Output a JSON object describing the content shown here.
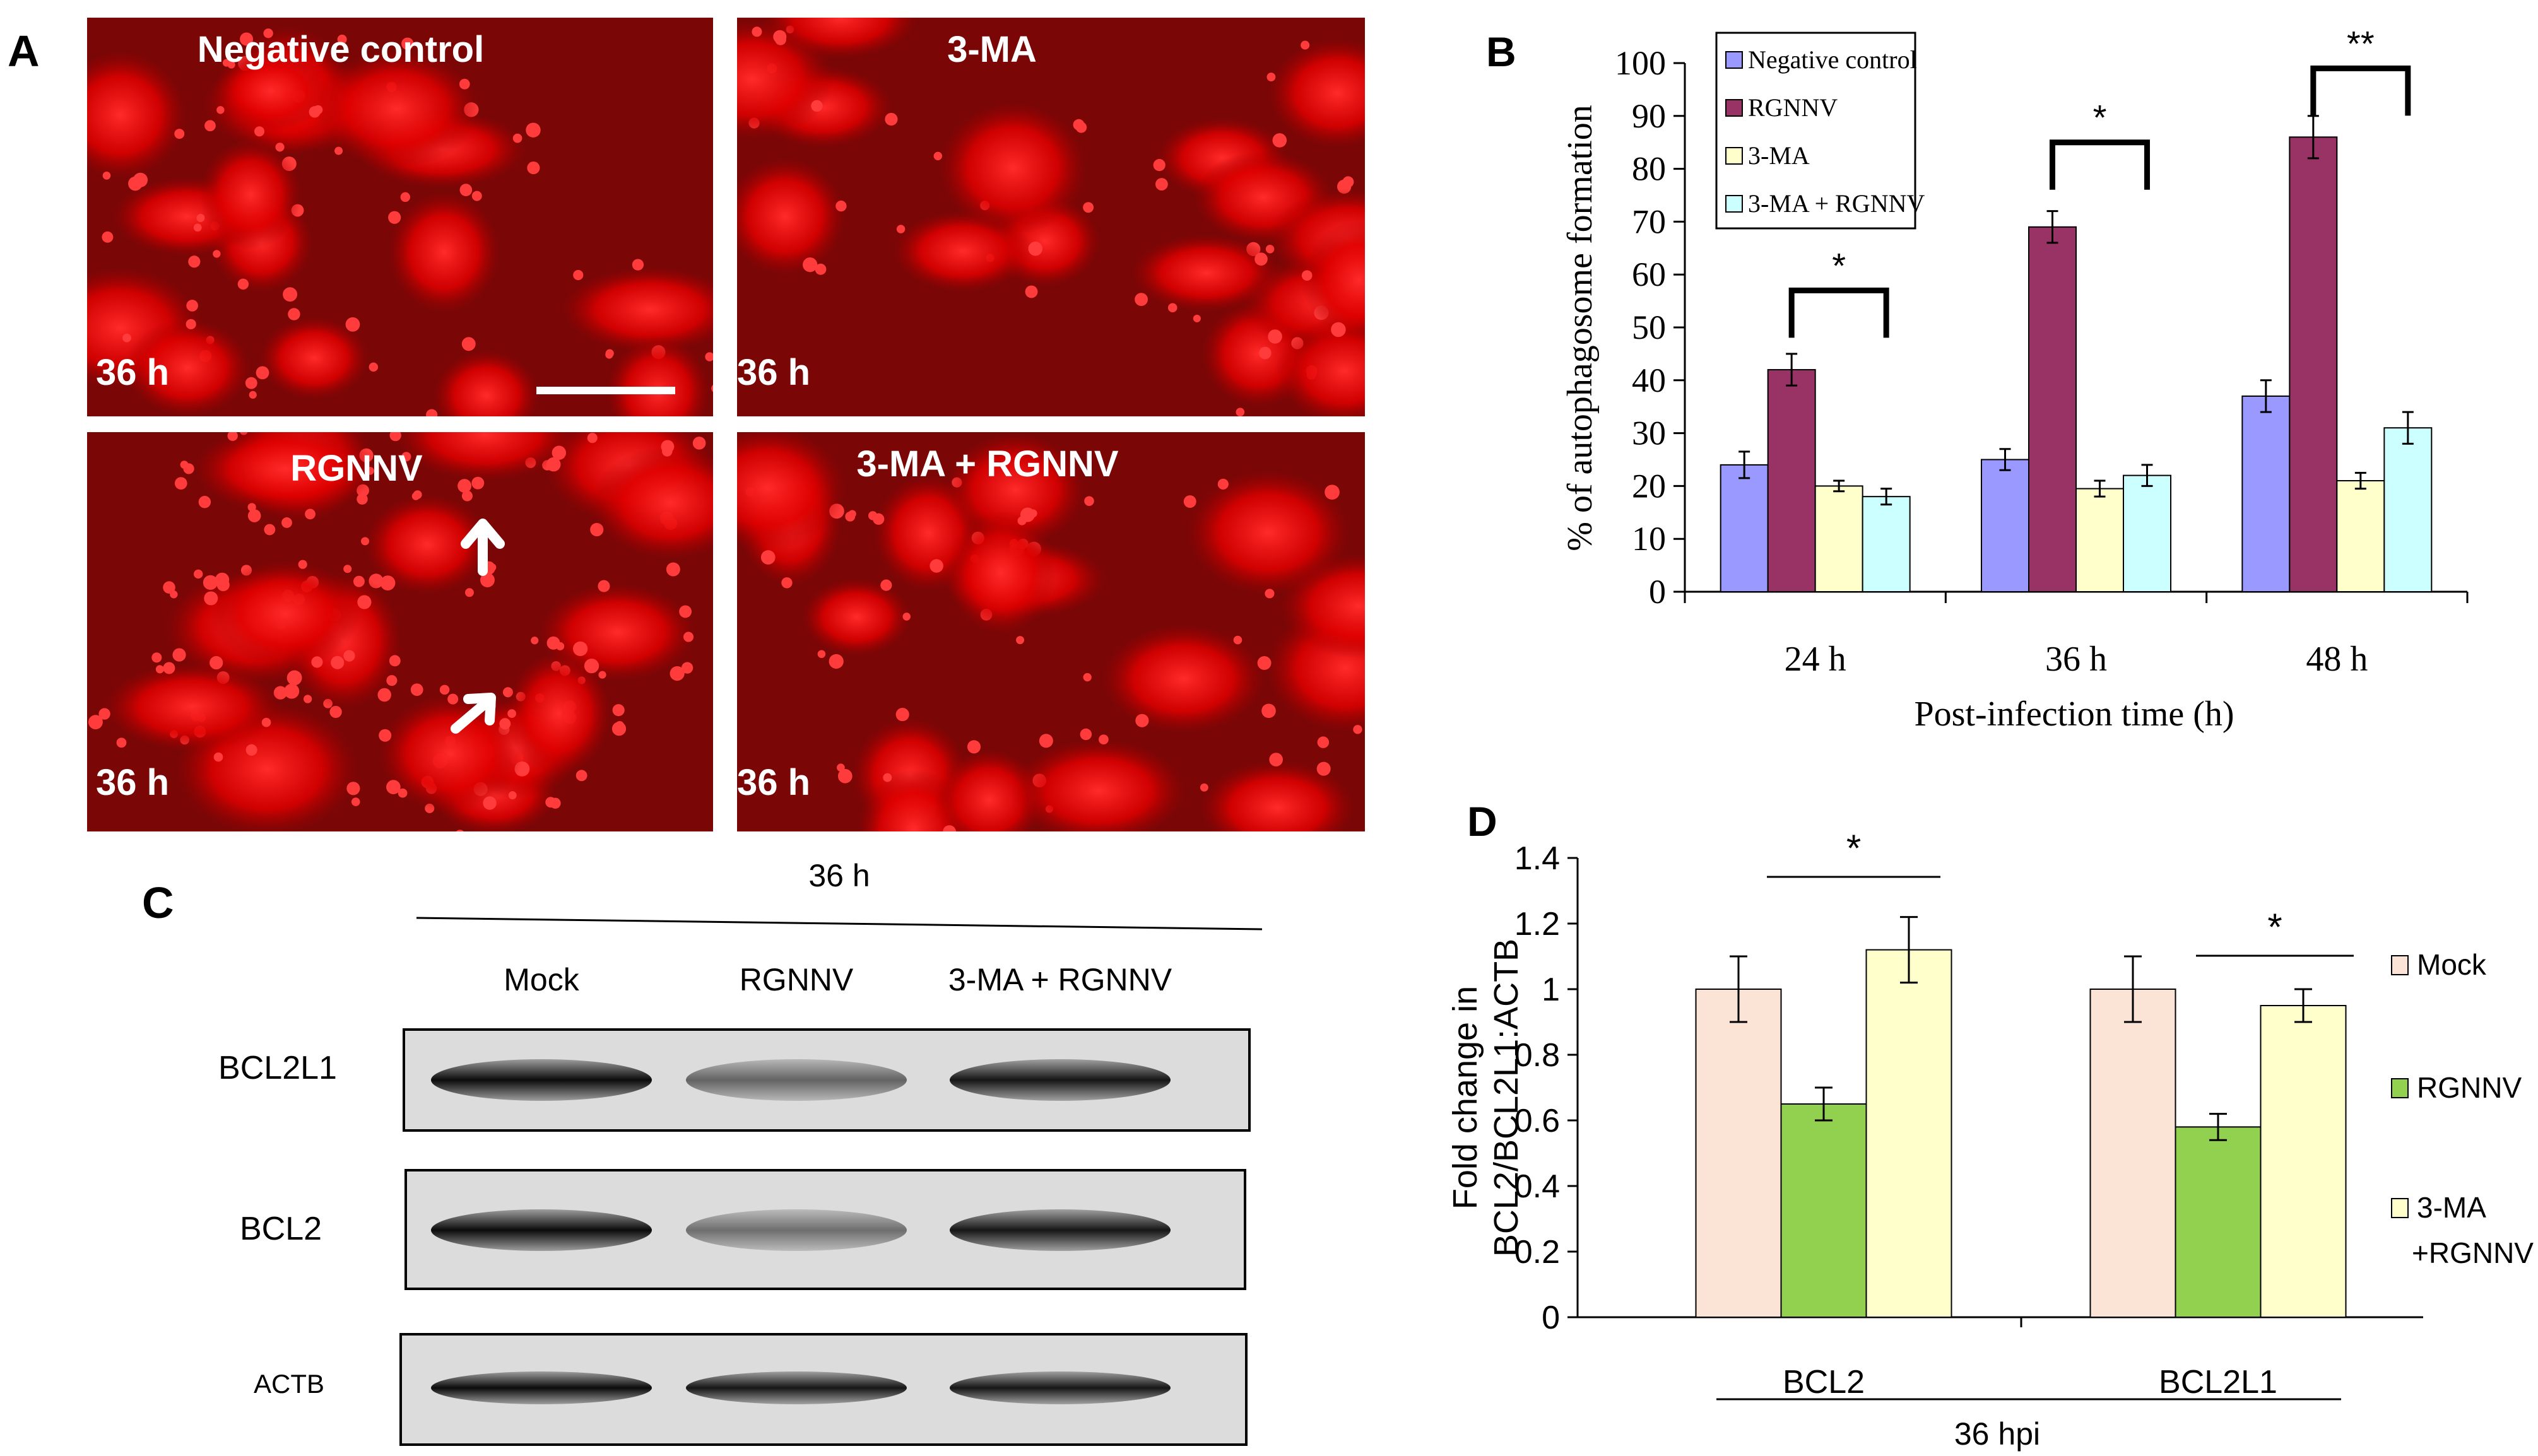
{
  "panels": {
    "a": "A",
    "b": "B",
    "c": "C",
    "d": "D"
  },
  "micrographs": [
    {
      "title": "Negative control",
      "time": "36 h"
    },
    {
      "title": "3-MA",
      "time": "36 h"
    },
    {
      "title": "RGNNV",
      "time": "36 h"
    },
    {
      "title": "3-MA + RGNNV",
      "time": "36 h"
    }
  ],
  "western_blot": {
    "time_label": "36 h",
    "lanes": [
      "Mock",
      "RGNNV",
      "3-MA + RGNNV"
    ],
    "bands": [
      {
        "label": "BCL2L1",
        "intensity": [
          0.95,
          0.55,
          0.9
        ]
      },
      {
        "label": "BCL2",
        "intensity": [
          0.95,
          0.5,
          0.9
        ]
      },
      {
        "label": "ACTB",
        "intensity": [
          0.95,
          0.9,
          0.9
        ]
      }
    ]
  },
  "chart_data": [
    {
      "id": "B",
      "type": "bar",
      "categories": [
        "24 h",
        "36 h",
        "48 h"
      ],
      "series": [
        {
          "name": "Negative control",
          "color": "#9999ff",
          "values": [
            24,
            25,
            37
          ],
          "errors": [
            2.5,
            2,
            3
          ]
        },
        {
          "name": "RGNNV",
          "color": "#993366",
          "values": [
            42,
            69,
            86
          ],
          "errors": [
            3,
            3,
            4
          ]
        },
        {
          "name": "3-MA",
          "color": "#ffffcc",
          "values": [
            20,
            19.5,
            21
          ],
          "errors": [
            1,
            1.5,
            1.5
          ]
        },
        {
          "name": "3-MA + RGNNV",
          "color": "#ccffff",
          "values": [
            18,
            22,
            31
          ],
          "errors": [
            1.5,
            2,
            3
          ]
        }
      ],
      "xlabel": "Post-infection time (h)",
      "ylabel": "% of autophagosome formation",
      "ylim": [
        0,
        100
      ],
      "yticks": [
        0,
        10,
        20,
        30,
        40,
        50,
        60,
        70,
        80,
        90,
        100
      ],
      "legend": "top-left",
      "grid": false,
      "significance": [
        {
          "from_series": 1,
          "to_series": 3,
          "category": 0,
          "y": 57,
          "label": "*"
        },
        {
          "from_series": 1,
          "to_series": 3,
          "category": 1,
          "y": 85,
          "label": "*"
        },
        {
          "from_series": 1,
          "to_series": 3,
          "category": 2,
          "y": 99,
          "label": "**"
        }
      ]
    },
    {
      "id": "D",
      "type": "bar",
      "categories": [
        "BCL2",
        "BCL2L1"
      ],
      "series": [
        {
          "name": "Mock",
          "color": "#fbe3d6",
          "values": [
            1.0,
            1.0
          ],
          "errors": [
            0.1,
            0.1
          ]
        },
        {
          "name": "RGNNV",
          "color": "#92d050",
          "values": [
            0.65,
            0.58
          ],
          "errors": [
            0.05,
            0.04
          ]
        },
        {
          "name": "3-MA\n+RGNNV",
          "color": "#ffffcc",
          "values": [
            1.12,
            0.95
          ],
          "errors": [
            0.1,
            0.05
          ]
        }
      ],
      "xlabel": "36 hpi",
      "ylabel": "Fold change in BCL2/BCL2L1:ACTB",
      "ylim": [
        0,
        1.4
      ],
      "yticks": [
        0,
        0.2,
        0.4,
        0.6,
        0.8,
        1,
        1.2,
        1.4
      ],
      "legend": "right",
      "grid": false,
      "significance": [
        {
          "category": 0,
          "label": "*"
        },
        {
          "category": 1,
          "label": "*"
        }
      ]
    }
  ]
}
